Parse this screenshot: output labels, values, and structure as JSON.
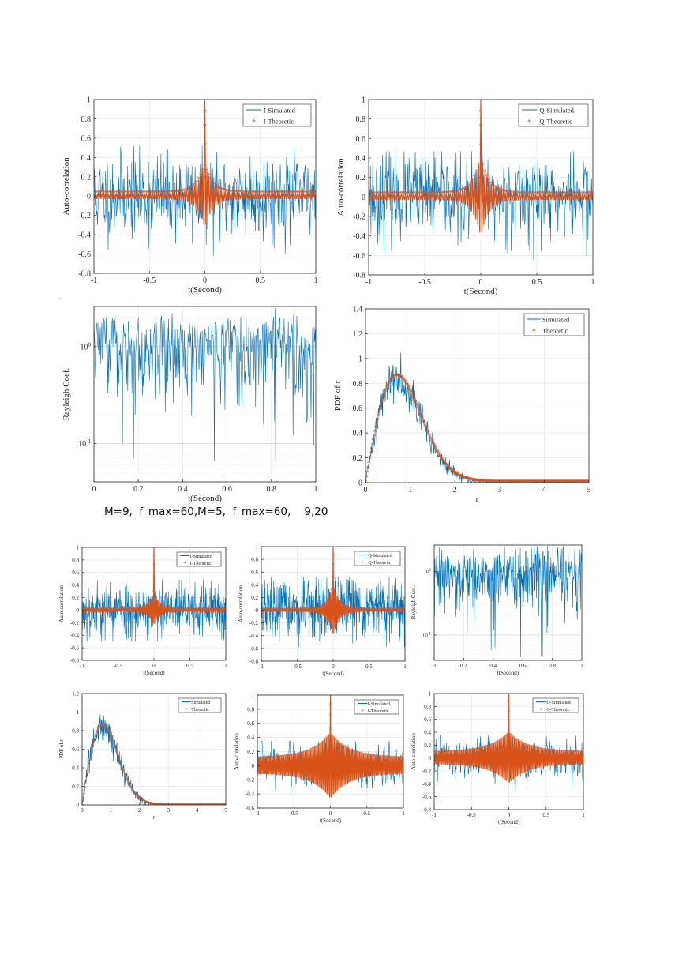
{
  "page": {
    "caption": "M=9,  f_max=60,M=5,  f_max=60,    9,20",
    "stray_mark": "."
  },
  "legend_labels": {
    "i_sim": "I-Simulated",
    "i_theo": "I-Theoretic",
    "q_sim": "Q-Simulated",
    "q_theo": "Q-Theoretic",
    "sim": "Simulated",
    "theo": "Theoretic"
  },
  "colors": {
    "simulated": "#0072BD",
    "theoretic": "#D95319",
    "grid": "#e6e6e6",
    "axis": "#262626"
  },
  "chart_data": [
    {
      "id": "p1",
      "type": "line",
      "xlabel": "t(Second)",
      "ylabel": "Auto-correlation",
      "xlim": [
        -1,
        1
      ],
      "ylim": [
        -0.8,
        1
      ],
      "xticks": [
        -1,
        -0.5,
        0,
        0.5,
        1
      ],
      "xticklabels": [
        "-1",
        "-0.5",
        "0",
        "0.5",
        "1"
      ],
      "yticks": [
        -0.8,
        -0.6,
        -0.4,
        -0.2,
        0,
        0.2,
        0.4,
        0.6,
        0.8,
        1
      ],
      "yticklabels": [
        "-0.8",
        "-0.6",
        "-0.4",
        "-0.2",
        "0",
        "0.2",
        "0.4",
        "0.6",
        "0.8",
        "1"
      ],
      "grid": true,
      "legend": "top-right",
      "series": [
        {
          "name": "I-Simulated",
          "kind": "acf_sim",
          "amp": 0.22,
          "seed": 11,
          "min": -0.68,
          "max": 0.52
        },
        {
          "name": "I-Theoretic",
          "kind": "acf_theo",
          "envelope": 0.03,
          "peak_env": 0.3,
          "decay": 0.07
        }
      ]
    },
    {
      "id": "p2",
      "type": "line",
      "xlabel": "t(Second)",
      "ylabel": "Auto-correlation",
      "xlim": [
        -1,
        1
      ],
      "ylim": [
        -0.8,
        1
      ],
      "xticks": [
        -1,
        -0.5,
        0,
        0.5,
        1
      ],
      "xticklabels": [
        "-1",
        "-0.5",
        "0",
        "0.5",
        "1"
      ],
      "yticks": [
        -0.8,
        -0.6,
        -0.4,
        -0.2,
        0,
        0.2,
        0.4,
        0.6,
        0.8,
        1
      ],
      "yticklabels": [
        "-0.8",
        "-0.6",
        "-0.4",
        "-0.2",
        "0",
        "0.2",
        "0.4",
        "0.6",
        "0.8",
        "1"
      ],
      "grid": true,
      "legend": "top-right",
      "series": [
        {
          "name": "Q-Simulated",
          "kind": "acf_sim",
          "amp": 0.22,
          "seed": 23,
          "min": -0.72,
          "max": 0.47
        },
        {
          "name": "Q-Theoretic",
          "kind": "acf_theo",
          "envelope": 0.03,
          "peak_env": 0.38,
          "decay": 0.07
        }
      ]
    },
    {
      "id": "p3",
      "type": "line",
      "xlabel": "t(Second)",
      "ylabel": "Rayleigh Coef.",
      "xlim": [
        0,
        1
      ],
      "ylim": [
        0.04,
        2.6
      ],
      "yscale": "log",
      "xticks": [
        0,
        0.2,
        0.4,
        0.6,
        0.8,
        1
      ],
      "xticklabels": [
        "0",
        "0.2",
        "0.4",
        "0.6",
        "0.8",
        "1"
      ],
      "yticks": [
        0.1,
        1
      ],
      "yticklabels": [
        "10^-1",
        "10^0"
      ],
      "grid": true,
      "series": [
        {
          "name": "",
          "kind": "rayleigh",
          "seed": 37
        }
      ]
    },
    {
      "id": "p4",
      "type": "line",
      "xlabel": "r",
      "ylabel": "PDF of r",
      "xlim": [
        0,
        5
      ],
      "ylim": [
        0,
        1.4
      ],
      "xticks": [
        0,
        1,
        2,
        3,
        4,
        5
      ],
      "xticklabels": [
        "0",
        "1",
        "2",
        "3",
        "4",
        "5"
      ],
      "yticks": [
        0,
        0.2,
        0.4,
        0.6,
        0.8,
        1,
        1.2,
        1.4
      ],
      "yticklabels": [
        "0",
        "0.2",
        "0.4",
        "0.6",
        "0.8",
        "1",
        "1.2",
        "1.4"
      ],
      "grid": true,
      "legend": "top-right",
      "series": [
        {
          "name": "Simulated",
          "kind": "pdf_sim",
          "seed": 41,
          "sigma2": 0.5
        },
        {
          "name": "Theoretic",
          "kind": "pdf_theo",
          "sigma2": 0.5
        }
      ]
    },
    {
      "id": "p5",
      "type": "line",
      "xlabel": "t(Second)",
      "ylabel": "Auto-correlation",
      "xlim": [
        -1,
        1
      ],
      "ylim": [
        -0.8,
        1
      ],
      "xticks": [
        -1,
        -0.5,
        0,
        0.5,
        1
      ],
      "xticklabels": [
        "-1",
        "-0.5",
        "0",
        "0.5",
        "1"
      ],
      "yticks": [
        -0.8,
        -0.6,
        -0.4,
        -0.2,
        0,
        0.2,
        0.4,
        0.6,
        0.8,
        1
      ],
      "yticklabels": [
        "-0.8",
        "-0.6",
        "-0.4",
        "-0.2",
        "0",
        "0.2",
        "0.4",
        "0.6",
        "0.8",
        "1"
      ],
      "grid": true,
      "legend": "top-right",
      "series": [
        {
          "name": "I-Simulated",
          "kind": "acf_sim",
          "amp": 0.22,
          "seed": 53,
          "min": -0.5,
          "max": 0.49
        },
        {
          "name": "I-Theoretic",
          "kind": "acf_theo",
          "envelope": 0.02,
          "peak_env": 0.22,
          "decay": 0.08
        }
      ]
    },
    {
      "id": "p6",
      "type": "line",
      "xlabel": "t(Second)",
      "ylabel": "Auto-correlation",
      "xlim": [
        -1,
        1
      ],
      "ylim": [
        -0.8,
        1
      ],
      "xticks": [
        -1,
        -0.5,
        0,
        0.5,
        1
      ],
      "xticklabels": [
        "-1",
        "-0.5",
        "0",
        "0.5",
        "1"
      ],
      "yticks": [
        -0.8,
        -0.6,
        -0.4,
        -0.2,
        0,
        0.2,
        0.4,
        0.6,
        0.8,
        1
      ],
      "yticklabels": [
        "-0.8",
        "-0.6",
        "-0.4",
        "-0.2",
        "0",
        "0.2",
        "0.4",
        "0.6",
        "0.8",
        "1"
      ],
      "grid": true,
      "legend": "top-right",
      "series": [
        {
          "name": "Q-Simulated",
          "kind": "acf_sim",
          "amp": 0.24,
          "seed": 67,
          "min": -0.58,
          "max": 0.52
        },
        {
          "name": "Q-Theoretic",
          "kind": "acf_theo",
          "envelope": 0.02,
          "peak_env": 0.38,
          "decay": 0.08
        }
      ]
    },
    {
      "id": "p7",
      "type": "line",
      "xlabel": "t(Second)",
      "ylabel": "Rayleigh Coef.",
      "xlim": [
        0,
        1
      ],
      "ylim": [
        0.04,
        2.6
      ],
      "yscale": "log",
      "xticks": [
        0,
        0.2,
        0.4,
        0.6,
        0.8,
        1
      ],
      "xticklabels": [
        "0",
        "0.2",
        "0.4",
        "0.6",
        "0.8",
        "1"
      ],
      "yticks": [
        0.1,
        1
      ],
      "yticklabels": [
        "10^-1",
        "10^0"
      ],
      "grid": true,
      "series": [
        {
          "name": "",
          "kind": "rayleigh",
          "seed": 71
        }
      ]
    },
    {
      "id": "p8",
      "type": "line",
      "xlabel": "r",
      "ylabel": "PDF of r",
      "xlim": [
        0,
        5
      ],
      "ylim": [
        0,
        1.2
      ],
      "xticks": [
        0,
        1,
        2,
        3,
        4,
        5
      ],
      "xticklabels": [
        "0",
        "1",
        "2",
        "3",
        "4",
        "5"
      ],
      "yticks": [
        0,
        0.2,
        0.4,
        0.6,
        0.8,
        1,
        1.2
      ],
      "yticklabels": [
        "0",
        "0.2",
        "0.4",
        "0.6",
        "0.8",
        "1",
        "1.2"
      ],
      "grid": true,
      "legend": "top-right",
      "series": [
        {
          "name": "Simulated",
          "kind": "pdf_sim",
          "seed": 83,
          "sigma2": 0.5
        },
        {
          "name": "Theoretic",
          "kind": "pdf_theo",
          "sigma2": 0.5
        }
      ]
    },
    {
      "id": "p9",
      "type": "line",
      "xlabel": "t(Second)",
      "ylabel": "Auto-correlation",
      "xlim": [
        -1,
        1
      ],
      "ylim": [
        -0.6,
        1
      ],
      "xticks": [
        -1,
        -0.5,
        0,
        0.5,
        1
      ],
      "xticklabels": [
        "-1",
        "-0.5",
        "0",
        "0.5",
        "1"
      ],
      "yticks": [
        -0.6,
        -0.4,
        -0.2,
        0,
        0.2,
        0.4,
        0.6,
        0.8,
        1
      ],
      "yticklabels": [
        "-0.6",
        "-0.4",
        "-0.2",
        "0",
        "0.2",
        "0.4",
        "0.6",
        "0.8",
        "1"
      ],
      "grid": true,
      "legend": "top-right",
      "series": [
        {
          "name": "I-Simulated",
          "kind": "acf_sim_smooth",
          "amp": 0.22,
          "seed": 97,
          "min": -0.55,
          "max": 0.35
        },
        {
          "name": "I-Theoretic",
          "kind": "acf_theo",
          "envelope": 0.11,
          "peak_env": 0.35,
          "decay": 0.25
        }
      ]
    },
    {
      "id": "p10",
      "type": "line",
      "xlabel": "t(Second)",
      "ylabel": "Auto-correlation",
      "xlim": [
        -1,
        1
      ],
      "ylim": [
        -0.8,
        1
      ],
      "xticks": [
        -1,
        -0.5,
        0,
        0.5,
        1
      ],
      "xticklabels": [
        "-1",
        "-0.5",
        "0",
        "0.5",
        "1"
      ],
      "yticks": [
        -0.8,
        -0.6,
        -0.4,
        -0.2,
        0,
        0.2,
        0.4,
        0.6,
        0.8,
        1
      ],
      "yticklabels": [
        "-0.8",
        "-0.6",
        "-0.4",
        "-0.2",
        "0",
        "0.2",
        "0.4",
        "0.6",
        "0.8",
        "1"
      ],
      "grid": true,
      "legend": "top-right",
      "series": [
        {
          "name": "Q-Simulated",
          "kind": "acf_sim_smooth",
          "amp": 0.2,
          "seed": 101,
          "min": -0.75,
          "max": 0.35
        },
        {
          "name": "Q-Theoretic",
          "kind": "acf_theo",
          "envelope": 0.09,
          "peak_env": 0.3,
          "decay": 0.25
        }
      ]
    }
  ]
}
